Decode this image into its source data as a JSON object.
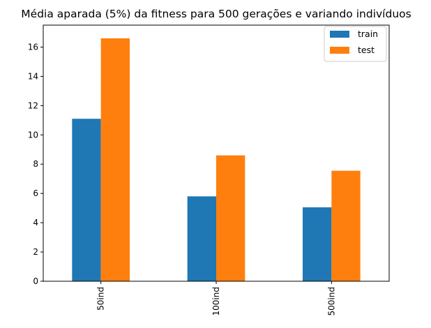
{
  "chart_data": {
    "type": "bar",
    "title": "Média aparada (5%) da fitness para 500 gerações e variando indivíduos",
    "xlabel": "",
    "ylabel": "",
    "categories": [
      "50ind",
      "100ind",
      "500ind"
    ],
    "series": [
      {
        "name": "train",
        "color": "#1f77b4",
        "values": [
          11.1,
          5.8,
          5.05
        ]
      },
      {
        "name": "test",
        "color": "#ff7f0e",
        "values": [
          16.6,
          8.6,
          7.55
        ]
      }
    ],
    "ylim": [
      0,
      17.5
    ],
    "yticks": [
      0,
      2,
      4,
      6,
      8,
      10,
      12,
      14,
      16
    ],
    "grid": false,
    "legend_position": "top-right"
  }
}
